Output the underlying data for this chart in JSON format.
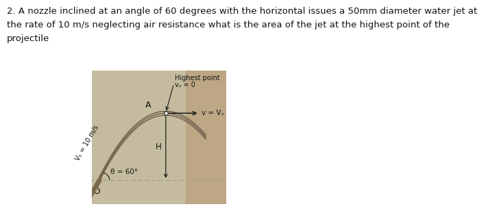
{
  "title_line1": "2. A nozzle inclined at an angle of 60 degrees with the horizontal issues a 50mm diameter water jet at",
  "title_line2": "the rate of 10 m/s neglecting air resistance what is the area of the jet at the highest point of the",
  "title_line3": "projectile",
  "title_fontsize": 9.5,
  "bg_color_left": "#c8bfa0",
  "bg_color_right": "#c8a87a",
  "fig_bg": "#ffffff",
  "label_highest_point": "Highest point",
  "label_vy": "vᵧ = 0",
  "label_A": "A",
  "label_H": "H",
  "label_v": "v = Vₓ",
  "label_vo": "V₀ = 10 m/s",
  "label_theta": "θ = 60°",
  "label_O": "O",
  "curve_color": "#6b5a48",
  "arrow_color": "#1a1a1a",
  "text_color": "#111111",
  "dashed_color": "#999999",
  "nozzle_color": "#7a6a55"
}
